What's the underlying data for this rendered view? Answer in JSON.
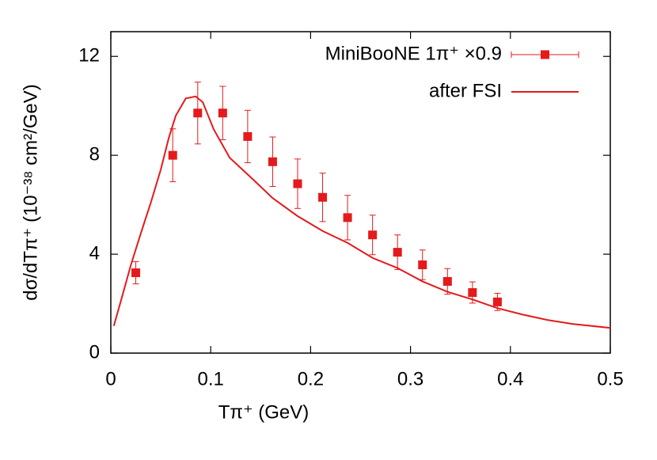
{
  "chart_data": {
    "type": "scatter",
    "xlabel": "Tπ⁺  (GeV)",
    "ylabel": "dσ/dTπ⁺  (10⁻³⁸ cm²/GeV)",
    "xlim": [
      0,
      0.5
    ],
    "ylim": [
      0,
      13
    ],
    "xticks": [
      0,
      0.1,
      0.2,
      0.3,
      0.4,
      0.5
    ],
    "yticks": [
      0,
      4,
      8,
      12
    ],
    "legend": "top-right",
    "series": [
      {
        "name": "MiniBooNE 1π⁺  ×0.9",
        "color": "#e41a1c",
        "style": "errorbar",
        "x": [
          0.025,
          0.062,
          0.087,
          0.112,
          0.137,
          0.162,
          0.187,
          0.212,
          0.237,
          0.262,
          0.287,
          0.312,
          0.337,
          0.362,
          0.387
        ],
        "values": [
          3.25,
          8.0,
          9.71,
          9.71,
          8.76,
          7.74,
          6.85,
          6.3,
          5.48,
          4.78,
          4.08,
          3.57,
          2.9,
          2.45,
          2.07
        ],
        "errors": [
          0.45,
          1.07,
          1.25,
          1.08,
          1.06,
          1.0,
          1.0,
          0.98,
          0.9,
          0.8,
          0.7,
          0.6,
          0.52,
          0.43,
          0.35
        ]
      },
      {
        "name": "after FSI",
        "color": "#e41a1c",
        "style": "line",
        "x": [
          0.003,
          0.01,
          0.02,
          0.03,
          0.04,
          0.05,
          0.058,
          0.065,
          0.075,
          0.085,
          0.092,
          0.103,
          0.119,
          0.143,
          0.162,
          0.187,
          0.212,
          0.237,
          0.262,
          0.287,
          0.312,
          0.337,
          0.362,
          0.387,
          0.412,
          0.437,
          0.462,
          0.5
        ],
        "values": [
          1.1,
          2.1,
          3.55,
          4.84,
          6.08,
          7.42,
          8.7,
          9.6,
          10.3,
          10.38,
          10.15,
          9.05,
          7.9,
          7.0,
          6.27,
          5.54,
          4.94,
          4.46,
          3.85,
          3.44,
          2.9,
          2.48,
          2.17,
          1.82,
          1.56,
          1.34,
          1.18,
          1.02
        ]
      }
    ]
  }
}
